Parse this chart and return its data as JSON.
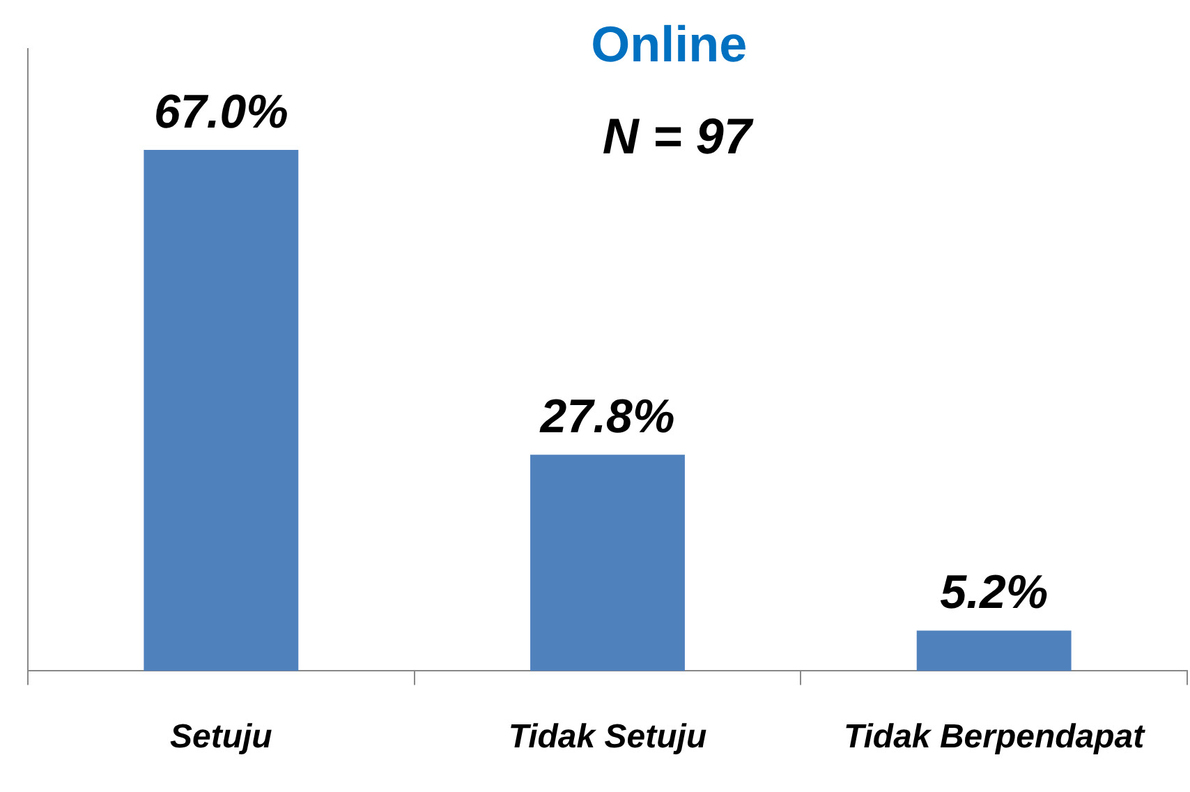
{
  "chart_data": {
    "type": "bar",
    "title": "Online",
    "annotations": [
      "N = 97"
    ],
    "categories": [
      "Setuju",
      "Tidak Setuju",
      "Tidak Berpendapat"
    ],
    "values": [
      67.0,
      27.8,
      5.2
    ],
    "value_labels": [
      "67.0%",
      "27.8%",
      "5.2%"
    ],
    "color": "#4f81bd",
    "ylim": [
      0,
      80
    ],
    "tick_labels": "x",
    "grid": false,
    "legend": false
  }
}
